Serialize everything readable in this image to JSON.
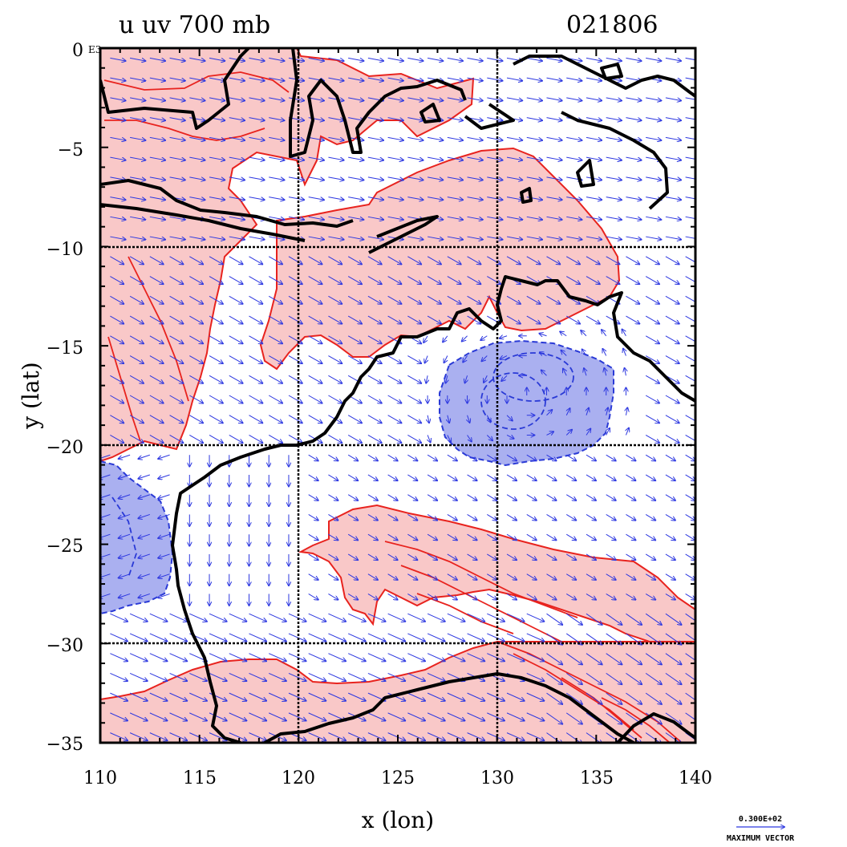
{
  "title": "u uv 700 mb",
  "date": "021806",
  "x_label": "x (lon)",
  "y_label": "y (lat)",
  "corner_label": "E3",
  "x_ticks": [
    "110",
    "115",
    "120",
    "125",
    "130",
    "135",
    "140"
  ],
  "y_ticks": [
    "0",
    "−5",
    "−10",
    "−15",
    "−20",
    "−25",
    "−30",
    "−35"
  ],
  "vector_key": {
    "value": "0.300E+02",
    "label": "MAXIMUM VECTOR"
  },
  "colors": {
    "positive_fill": "#f9c8c8",
    "positive_line": "#e8231e",
    "negative_fill": "#aab0f0",
    "negative_line": "#2a3ad6",
    "vector": "#2c37e0",
    "coast": "#000000",
    "grid": "#000000"
  },
  "chart_data": {
    "type": "vector-field-map",
    "x_range": [
      110,
      140
    ],
    "y_range": [
      -35,
      0
    ],
    "grid_lines_lon": [
      120,
      130
    ],
    "grid_lines_lat": [
      -10,
      -20,
      -30
    ],
    "vector_spacing_deg": 1,
    "features": [
      "positive u: north and west of north-west Australia (110-138E, 0 to -25S)",
      "positive u: southern belt over Great Australian Bight and south-east (-25 to -35S)",
      "negative u: Gulf of Carpentaria / north Queensland (-16 to -21S, 127-136E)",
      "negative u: off western coast of Western Australia (-21 to -28S, 110-114E)"
    ]
  }
}
